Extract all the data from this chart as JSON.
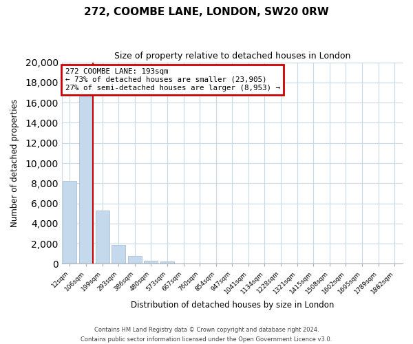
{
  "title": "272, COOMBE LANE, LONDON, SW20 0RW",
  "subtitle": "Size of property relative to detached houses in London",
  "xlabel": "Distribution of detached houses by size in London",
  "ylabel": "Number of detached properties",
  "categories": [
    "12sqm",
    "106sqm",
    "199sqm",
    "293sqm",
    "386sqm",
    "480sqm",
    "573sqm",
    "667sqm",
    "760sqm",
    "854sqm",
    "947sqm",
    "1041sqm",
    "1134sqm",
    "1228sqm",
    "1321sqm",
    "1415sqm",
    "1508sqm",
    "1602sqm",
    "1695sqm",
    "1789sqm",
    "1882sqm"
  ],
  "bar_values": [
    8200,
    16600,
    5300,
    1850,
    800,
    290,
    250,
    0,
    0,
    0,
    0,
    0,
    0,
    0,
    0,
    0,
    0,
    0,
    0,
    0,
    0
  ],
  "bar_color": "#c5d9ed",
  "vline_x_bar_index": 1,
  "annotation_title": "272 COOMBE LANE: 193sqm",
  "annotation_line1": "← 73% of detached houses are smaller (23,905)",
  "annotation_line2": "27% of semi-detached houses are larger (8,953) →",
  "annotation_box_color": "#ffffff",
  "annotation_box_edge": "#cc0000",
  "vline_color": "#cc0000",
  "ylim": [
    0,
    20000
  ],
  "yticks": [
    0,
    2000,
    4000,
    6000,
    8000,
    10000,
    12000,
    14000,
    16000,
    18000,
    20000
  ],
  "footer1": "Contains HM Land Registry data © Crown copyright and database right 2024.",
  "footer2": "Contains public sector information licensed under the Open Government Licence v3.0.",
  "background_color": "#ffffff",
  "grid_color": "#c8d8e8"
}
